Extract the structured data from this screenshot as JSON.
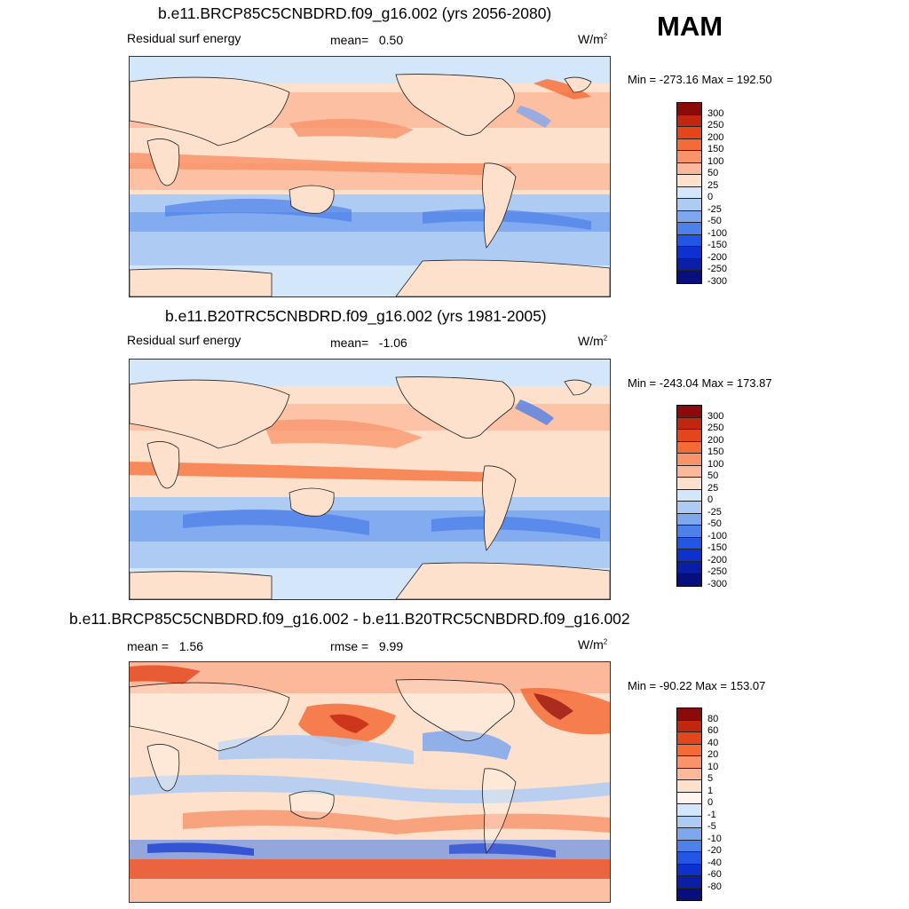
{
  "season": "MAM",
  "colors": {
    "abs_scale": [
      "#8b0a0a",
      "#c2260f",
      "#e4451c",
      "#f56b36",
      "#f8936a",
      "#fbb89a",
      "#fde1cc",
      "#d4e6fa",
      "#aecbf4",
      "#7ea7ef",
      "#4d80e8",
      "#2456e6",
      "#0d30cf",
      "#0a1fa5",
      "#070e7e"
    ],
    "diff_scale": [
      "#8b0a0a",
      "#c2260f",
      "#e4451c",
      "#f56b36",
      "#f8936a",
      "#fbb89a",
      "#fde1cc",
      "#fff5ee",
      "#d4e6fa",
      "#aecbf4",
      "#7ea7ef",
      "#4d80e8",
      "#2456e6",
      "#0d30cf",
      "#0a1fa5",
      "#070e7e"
    ]
  },
  "panels": [
    {
      "title": "b.e11.BRCP85C5CNBDRD.f09_g16.002 (yrs 2056-2080)",
      "left_label": "Residual surf energy",
      "mean_label": "mean=",
      "mean_value": "0.50",
      "rmse_label": "",
      "rmse_value": "",
      "units": "W/m",
      "units_sup": "2",
      "minmax": "Min = -273.16 Max = 192.50",
      "colorbar_ticks": [
        "300",
        "250",
        "200",
        "150",
        "100",
        "50",
        "25",
        "0",
        "-25",
        "-50",
        "-100",
        "-150",
        "-200",
        "-250",
        "-300"
      ]
    },
    {
      "title": "b.e11.B20TRC5CNBDRD.f09_g16.002 (yrs 1981-2005)",
      "left_label": "Residual surf energy",
      "mean_label": "mean=",
      "mean_value": "-1.06",
      "rmse_label": "",
      "rmse_value": "",
      "units": "W/m",
      "units_sup": "2",
      "minmax": "Min = -243.04 Max = 173.87",
      "colorbar_ticks": [
        "300",
        "250",
        "200",
        "150",
        "100",
        "50",
        "25",
        "0",
        "-25",
        "-50",
        "-100",
        "-150",
        "-200",
        "-250",
        "-300"
      ]
    },
    {
      "title": "b.e11.BRCP85C5CNBDRD.f09_g16.002 - b.e11.B20TRC5CNBDRD.f09_g16.002",
      "left_label": "",
      "mean_label": "mean =",
      "mean_value": "1.56",
      "rmse_label": "rmse =",
      "rmse_value": "9.99",
      "units": "W/m",
      "units_sup": "2",
      "minmax": "Min = -90.22 Max = 153.07",
      "colorbar_ticks": [
        "80",
        "60",
        "40",
        "20",
        "10",
        "5",
        "1",
        "0",
        "-1",
        "-5",
        "-10",
        "-20",
        "-40",
        "-60",
        "-80"
      ]
    }
  ]
}
